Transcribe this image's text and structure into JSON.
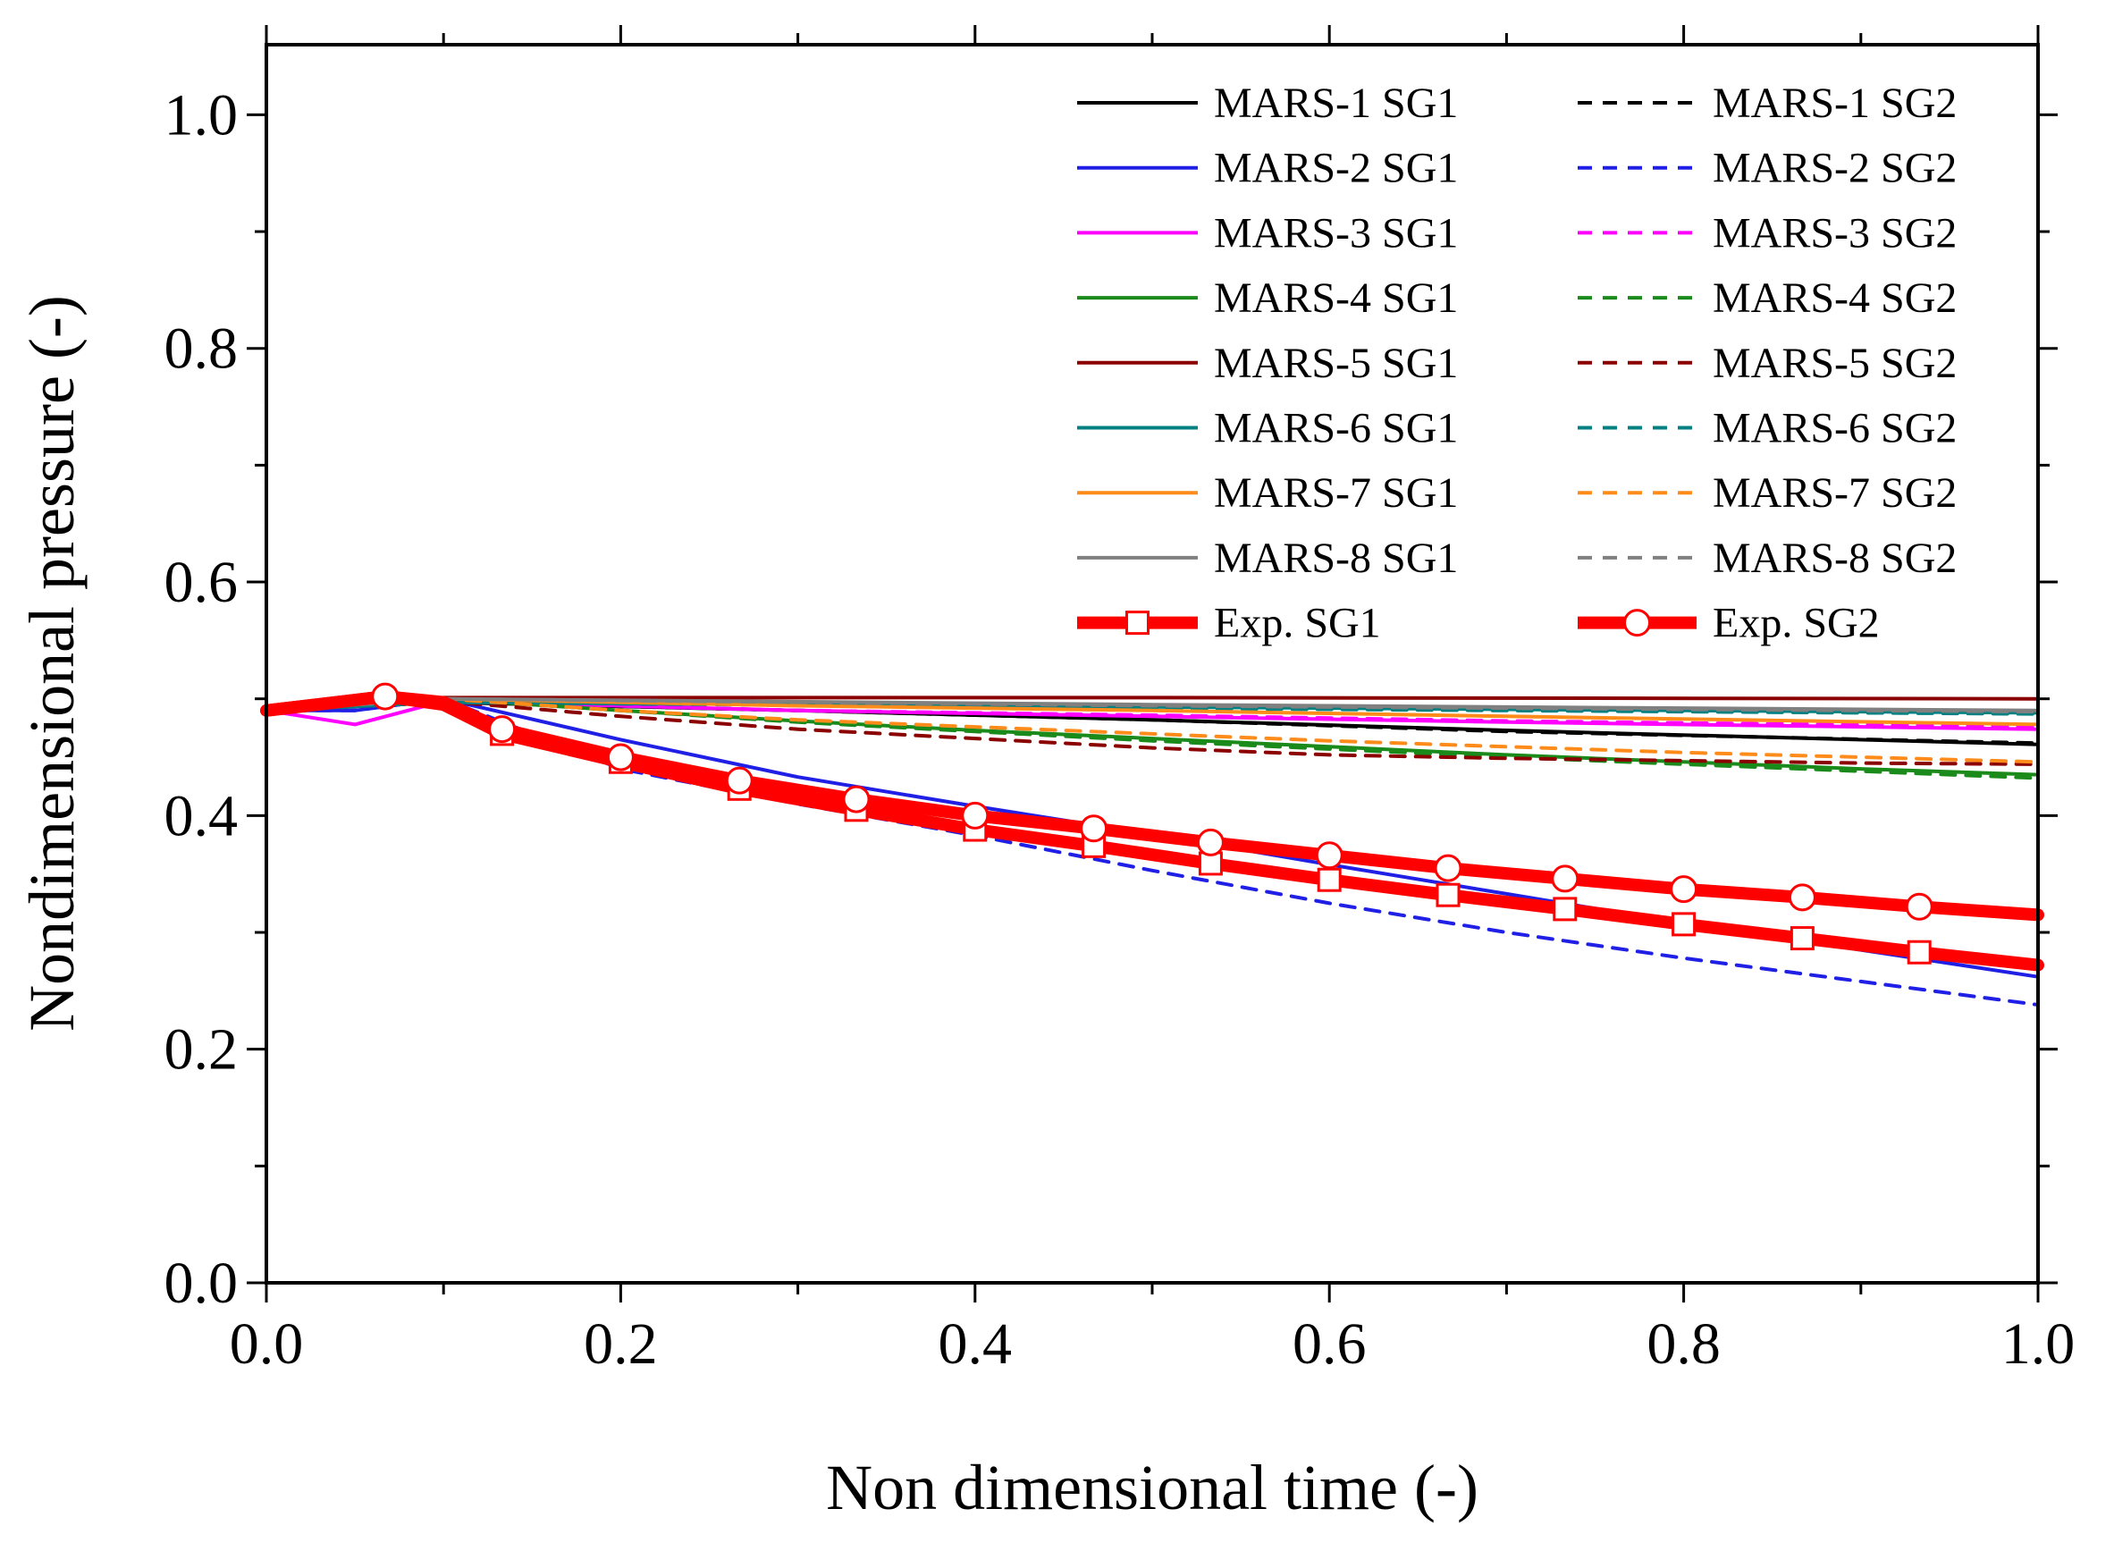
{
  "chart_data": {
    "type": "line",
    "title": "",
    "xlabel": "Non dimensional time (-)",
    "ylabel": "Nondimensional pressure (-)",
    "xlim": [
      0.0,
      1.0
    ],
    "ylim": [
      0.0,
      1.06
    ],
    "xticks": [
      0.0,
      0.2,
      0.4,
      0.6,
      0.8,
      1.0
    ],
    "xtick_labels": [
      "0.0",
      "0.2",
      "0.4",
      "0.6",
      "0.8",
      "1.0"
    ],
    "yticks": [
      0.0,
      0.2,
      0.4,
      0.6,
      0.8,
      1.0
    ],
    "ytick_labels": [
      "0.0",
      "0.2",
      "0.4",
      "0.6",
      "0.8",
      "1.0"
    ],
    "legend_position": "top-right",
    "series": [
      {
        "name": "MARS-1 SG1",
        "color": "#000000",
        "dash": "solid",
        "x": [
          0,
          0.1,
          0.3,
          0.5,
          0.7,
          1.0
        ],
        "y": [
          0.49,
          0.497,
          0.49,
          0.482,
          0.473,
          0.461
        ]
      },
      {
        "name": "MARS-1 SG2",
        "color": "#000000",
        "dash": "dashed",
        "x": [
          0,
          0.1,
          0.3,
          0.5,
          0.7,
          1.0
        ],
        "y": [
          0.49,
          0.497,
          0.49,
          0.482,
          0.472,
          0.462
        ]
      },
      {
        "name": "MARS-2 SG1",
        "color": "#1f1fe6",
        "dash": "solid",
        "x": [
          0,
          0.05,
          0.1,
          0.2,
          0.3,
          0.4,
          0.5,
          0.6,
          0.7,
          0.8,
          0.9,
          1.0
        ],
        "y": [
          0.49,
          0.49,
          0.5,
          0.465,
          0.433,
          0.408,
          0.384,
          0.358,
          0.333,
          0.308,
          0.285,
          0.262
        ]
      },
      {
        "name": "MARS-2 SG2",
        "color": "#1f1fe6",
        "dash": "dashed",
        "x": [
          0,
          0.05,
          0.1,
          0.2,
          0.3,
          0.4,
          0.5,
          0.6,
          0.7,
          0.8,
          0.9,
          1.0
        ],
        "y": [
          0.49,
          0.49,
          0.5,
          0.44,
          0.41,
          0.383,
          0.353,
          0.325,
          0.3,
          0.278,
          0.258,
          0.238
        ]
      },
      {
        "name": "MARS-3 SG1",
        "color": "#ff00ff",
        "dash": "solid",
        "x": [
          0,
          0.05,
          0.1,
          0.3,
          0.5,
          0.7,
          1.0
        ],
        "y": [
          0.49,
          0.478,
          0.498,
          0.49,
          0.485,
          0.48,
          0.474
        ]
      },
      {
        "name": "MARS-3 SG2",
        "color": "#ff00ff",
        "dash": "dashed",
        "x": [
          0,
          0.1,
          0.3,
          0.5,
          0.7,
          1.0
        ],
        "y": [
          0.49,
          0.498,
          0.49,
          0.486,
          0.481,
          0.476
        ]
      },
      {
        "name": "MARS-4 SG1",
        "color": "#1a8a1a",
        "dash": "solid",
        "x": [
          0,
          0.1,
          0.2,
          0.3,
          0.4,
          0.5,
          0.6,
          0.7,
          0.8,
          0.9,
          1.0
        ],
        "y": [
          0.49,
          0.5,
          0.49,
          0.481,
          0.473,
          0.466,
          0.459,
          0.452,
          0.446,
          0.44,
          0.435
        ]
      },
      {
        "name": "MARS-4 SG2",
        "color": "#1a8a1a",
        "dash": "dashed",
        "x": [
          0,
          0.1,
          0.2,
          0.3,
          0.4,
          0.5,
          0.6,
          0.7,
          0.8,
          0.9,
          1.0
        ],
        "y": [
          0.49,
          0.5,
          0.49,
          0.48,
          0.472,
          0.464,
          0.457,
          0.45,
          0.444,
          0.438,
          0.432
        ]
      },
      {
        "name": "MARS-5 SG1",
        "color": "#8b0000",
        "dash": "solid",
        "x": [
          0,
          0.1,
          0.5,
          1.0
        ],
        "y": [
          0.49,
          0.501,
          0.501,
          0.5
        ]
      },
      {
        "name": "MARS-5 SG2",
        "color": "#8b0000",
        "dash": "dashed",
        "x": [
          0,
          0.1,
          0.2,
          0.3,
          0.4,
          0.5,
          0.6,
          0.7,
          0.8,
          0.9,
          1.0
        ],
        "y": [
          0.49,
          0.498,
          0.485,
          0.474,
          0.466,
          0.458,
          0.452,
          0.449,
          0.447,
          0.445,
          0.444
        ]
      },
      {
        "name": "MARS-6 SG1",
        "color": "#008080",
        "dash": "solid",
        "x": [
          0,
          0.1,
          0.5,
          1.0
        ],
        "y": [
          0.49,
          0.497,
          0.493,
          0.488
        ]
      },
      {
        "name": "MARS-6 SG2",
        "color": "#008080",
        "dash": "dashed",
        "x": [
          0,
          0.1,
          0.5,
          1.0
        ],
        "y": [
          0.49,
          0.497,
          0.492,
          0.487
        ]
      },
      {
        "name": "MARS-7 SG1",
        "color": "#ff8c1a",
        "dash": "solid",
        "x": [
          0,
          0.1,
          0.3,
          0.5,
          0.7,
          1.0
        ],
        "y": [
          0.49,
          0.5,
          0.494,
          0.49,
          0.485,
          0.478
        ]
      },
      {
        "name": "MARS-7 SG2",
        "color": "#ff8c1a",
        "dash": "dashed",
        "x": [
          0,
          0.1,
          0.2,
          0.3,
          0.4,
          0.5,
          0.6,
          0.7,
          0.8,
          0.9,
          1.0
        ],
        "y": [
          0.49,
          0.5,
          0.49,
          0.482,
          0.476,
          0.47,
          0.464,
          0.459,
          0.454,
          0.45,
          0.446
        ]
      },
      {
        "name": "MARS-8 SG1",
        "color": "#808080",
        "dash": "solid",
        "x": [
          0,
          0.1,
          0.5,
          1.0
        ],
        "y": [
          0.49,
          0.5,
          0.495,
          0.49
        ]
      },
      {
        "name": "MARS-8 SG2",
        "color": "#808080",
        "dash": "dashed",
        "x": [
          0,
          0.1,
          0.5,
          1.0
        ],
        "y": [
          0.49,
          0.5,
          0.494,
          0.489
        ]
      },
      {
        "name": "Exp. SG1",
        "color": "#ff0000",
        "dash": "solid",
        "thick": true,
        "marker": "square",
        "x": [
          0,
          0.067,
          0.1,
          0.133,
          0.2,
          0.267,
          0.333,
          0.4,
          0.467,
          0.533,
          0.6,
          0.667,
          0.733,
          0.8,
          0.867,
          0.933,
          1.0
        ],
        "y": [
          0.49,
          0.502,
          0.495,
          0.47,
          0.446,
          0.423,
          0.405,
          0.388,
          0.374,
          0.359,
          0.345,
          0.332,
          0.32,
          0.307,
          0.295,
          0.283,
          0.272
        ],
        "marker_x": [
          0.133,
          0.2,
          0.267,
          0.333,
          0.4,
          0.467,
          0.533,
          0.6,
          0.667,
          0.733,
          0.8,
          0.867,
          0.933
        ]
      },
      {
        "name": "Exp. SG2",
        "color": "#ff0000",
        "dash": "solid",
        "thick": true,
        "marker": "circle",
        "x": [
          0,
          0.067,
          0.1,
          0.133,
          0.2,
          0.267,
          0.333,
          0.4,
          0.467,
          0.533,
          0.6,
          0.667,
          0.733,
          0.8,
          0.867,
          0.933,
          1.0
        ],
        "y": [
          0.49,
          0.502,
          0.497,
          0.474,
          0.45,
          0.43,
          0.414,
          0.4,
          0.389,
          0.377,
          0.366,
          0.355,
          0.346,
          0.337,
          0.33,
          0.322,
          0.315
        ],
        "marker_x": [
          0.067,
          0.133,
          0.2,
          0.267,
          0.333,
          0.4,
          0.467,
          0.533,
          0.6,
          0.667,
          0.733,
          0.8,
          0.867,
          0.933
        ]
      }
    ]
  }
}
